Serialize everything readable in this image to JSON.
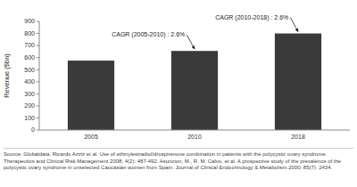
{
  "chart_data": {
    "type": "bar",
    "categories": [
      "2005",
      "2010",
      "2018"
    ],
    "values": [
      575,
      655,
      800
    ],
    "color": "#3a3a3a",
    "ylabel": "Revenue ($bn)",
    "ylim": [
      0,
      900
    ],
    "yticks": [
      0,
      100,
      200,
      300,
      400,
      500,
      600,
      700,
      800,
      900
    ],
    "grid": false,
    "annotations": [
      "CAGR (2005-2010) : 2.6%",
      "CAGR (2010-2018) : 2.6%"
    ],
    "source": "Source: Globaldata, Ricardo Azziz et al. Use of ethinylestradiol/drospirenone combination in patients with the polycystic ovary syndrome. Therapeutics and Clinical Risk Management 2008; 4(2): 487-492. Asuncion, M., R. M. Calvo, et al. A prospective study of the prevalence of the polycystic ovary syndrome in unselected Caucasian women from Spain. Journal of Clinical Endocrinology & Metabolism 2000; 85(7): 2434."
  }
}
